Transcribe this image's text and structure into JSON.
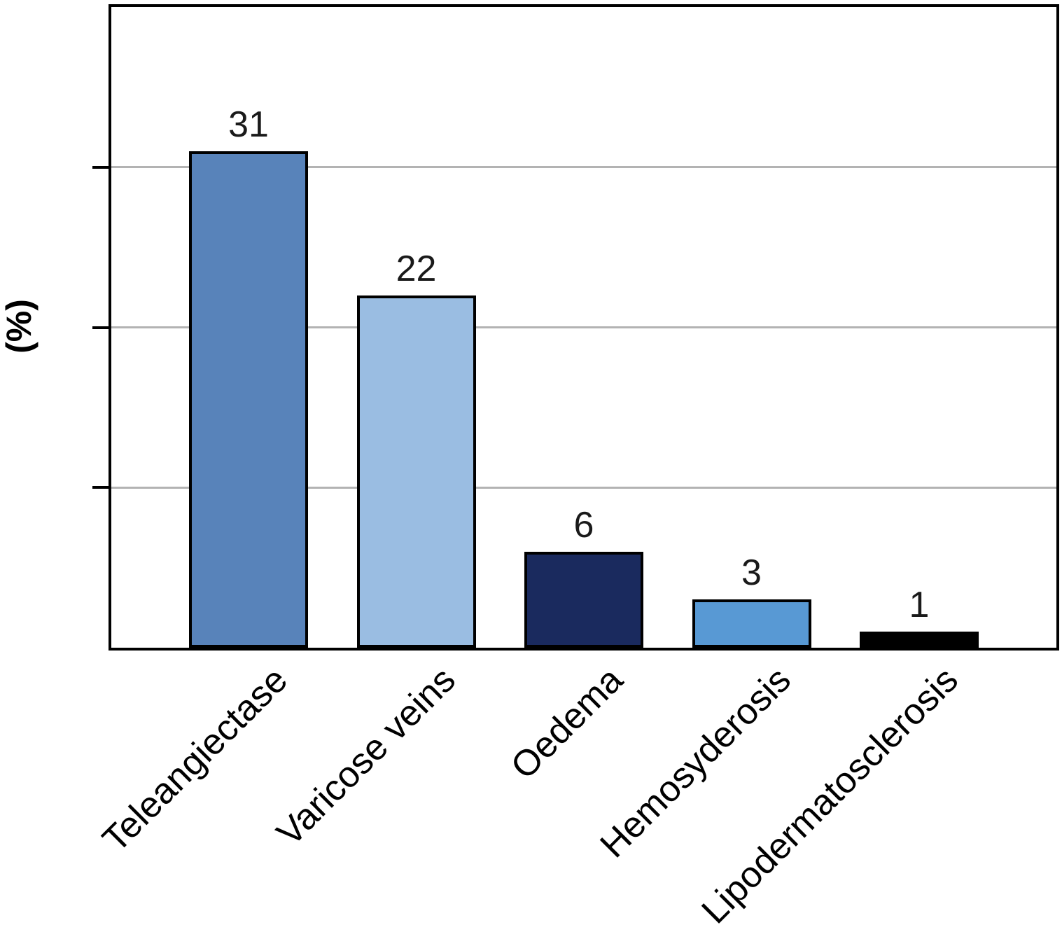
{
  "chart_data": {
    "type": "bar",
    "title": "",
    "xlabel": "",
    "ylabel": "(%)",
    "categories": [
      "Teleangiectase",
      "Varicose veins",
      "Oedema",
      "Hemosyderosis",
      "Lipodermatosclerosis"
    ],
    "values": [
      31,
      22,
      6,
      3,
      1
    ],
    "bar_colors": [
      "#5883ba",
      "#9abde2",
      "#1a2a5e",
      "#5899d4",
      "#000000"
    ],
    "bar_border_color": "#000000",
    "ylim": [
      0,
      40
    ],
    "yticks": [
      10,
      20,
      30
    ],
    "ytick_labels_shown": false,
    "grid": true,
    "gridline_color": "#b3b3b3",
    "axis_color": "#000000",
    "legend": "none",
    "value_labels_shown": true
  }
}
